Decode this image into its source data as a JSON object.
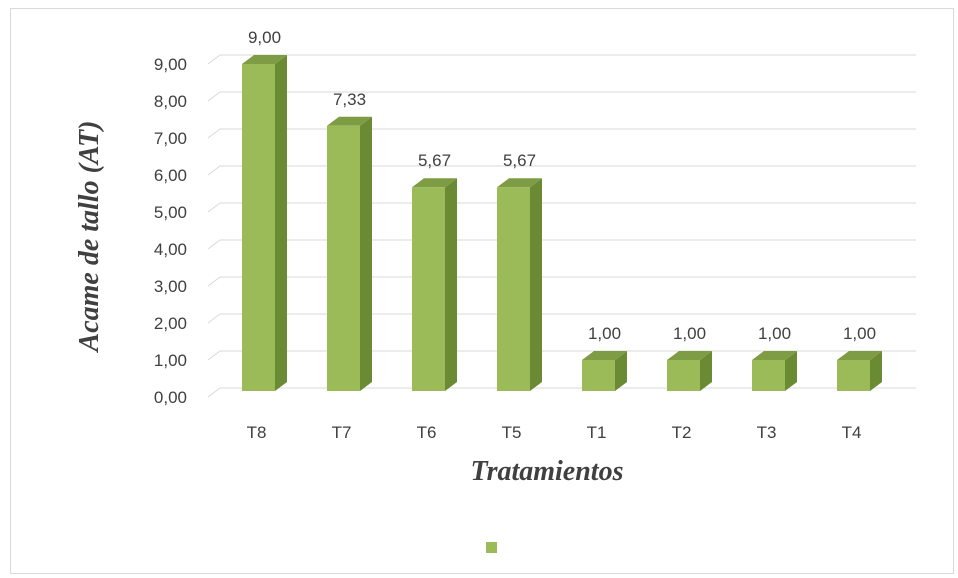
{
  "chart_data": {
    "type": "bar",
    "categories": [
      "T8",
      "T7",
      "T6",
      "T5",
      "T1",
      "T2",
      "T3",
      "T4"
    ],
    "values": [
      9.0,
      7.33,
      5.67,
      5.67,
      1.0,
      1.0,
      1.0,
      1.0
    ],
    "data_labels": [
      "9,00",
      "7,33",
      "5,67",
      "5,67",
      "1,00",
      "1,00",
      "1,00",
      "1,00"
    ],
    "y_ticks": [
      "0,00",
      "1,00",
      "2,00",
      "3,00",
      "4,00",
      "5,00",
      "6,00",
      "7,00",
      "8,00",
      "9,00"
    ],
    "xlabel": "Tratamientos",
    "ylabel": "Acame de tallo (AT)",
    "ylim": [
      0,
      9
    ],
    "grid": true,
    "legend_position": "bottom",
    "colors": {
      "bar_front": "#9bbb59",
      "bar_side": "#6b8a34",
      "bar_top": "#7e9c43",
      "grid": "#d9d9d9"
    }
  }
}
